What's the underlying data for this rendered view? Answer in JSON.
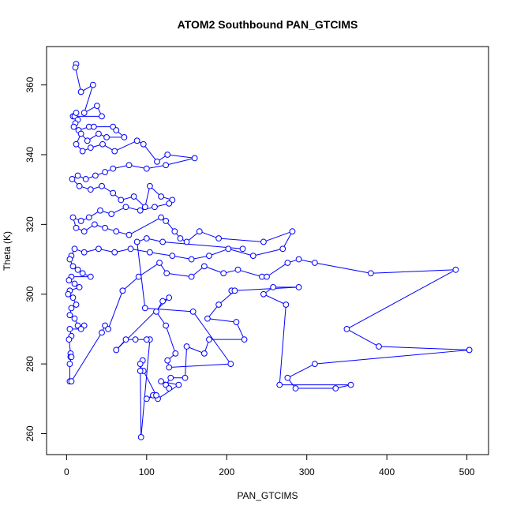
{
  "chart_data": {
    "type": "scatter",
    "style": "line+points",
    "title": "ATOM2 Southbound PAN_GTCIMS",
    "xlabel": "PAN_GTCIMS",
    "ylabel": "Theta (K)",
    "xlim": [
      -25,
      527
    ],
    "ylim": [
      254,
      371
    ],
    "xticks": [
      0,
      100,
      200,
      300,
      400,
      500
    ],
    "yticks": [
      260,
      280,
      300,
      320,
      340,
      360
    ],
    "color": "#0000ff",
    "series": [
      {
        "name": "ATOM2 Southbound",
        "points": [
          [
            12,
            366
          ],
          [
            11,
            365
          ],
          [
            18,
            358
          ],
          [
            33,
            360
          ],
          [
            22,
            352
          ],
          [
            38,
            354
          ],
          [
            44,
            351
          ],
          [
            8,
            351
          ],
          [
            10,
            351
          ],
          [
            12,
            352
          ],
          [
            14,
            350
          ],
          [
            11,
            349
          ],
          [
            9,
            348
          ],
          [
            15,
            347
          ],
          [
            28,
            348
          ],
          [
            34,
            348
          ],
          [
            58,
            348
          ],
          [
            62,
            347
          ],
          [
            72,
            345
          ],
          [
            50,
            345
          ],
          [
            40,
            346
          ],
          [
            26,
            344
          ],
          [
            18,
            346
          ],
          [
            12,
            343
          ],
          [
            20,
            341
          ],
          [
            30,
            342
          ],
          [
            45,
            343
          ],
          [
            60,
            341
          ],
          [
            88,
            344
          ],
          [
            96,
            343
          ],
          [
            113,
            338
          ],
          [
            126,
            340
          ],
          [
            160,
            339
          ],
          [
            124,
            337
          ],
          [
            100,
            336
          ],
          [
            78,
            337
          ],
          [
            58,
            336
          ],
          [
            48,
            335
          ],
          [
            36,
            334
          ],
          [
            24,
            333
          ],
          [
            14,
            334
          ],
          [
            7,
            333
          ],
          [
            16,
            331
          ],
          [
            30,
            330
          ],
          [
            44,
            331
          ],
          [
            58,
            329
          ],
          [
            68,
            327
          ],
          [
            84,
            328
          ],
          [
            98,
            325
          ],
          [
            104,
            331
          ],
          [
            118,
            328
          ],
          [
            132,
            327
          ],
          [
            128,
            326
          ],
          [
            110,
            325
          ],
          [
            92,
            324
          ],
          [
            74,
            325
          ],
          [
            56,
            323
          ],
          [
            42,
            324
          ],
          [
            28,
            322
          ],
          [
            18,
            321
          ],
          [
            8,
            322
          ],
          [
            12,
            319
          ],
          [
            22,
            318
          ],
          [
            35,
            320
          ],
          [
            48,
            319
          ],
          [
            62,
            318
          ],
          [
            78,
            317
          ],
          [
            118,
            322
          ],
          [
            124,
            321
          ],
          [
            135,
            318
          ],
          [
            142,
            316
          ],
          [
            150,
            315
          ],
          [
            166,
            318
          ],
          [
            190,
            316
          ],
          [
            246,
            315
          ],
          [
            282,
            318
          ],
          [
            270,
            313
          ],
          [
            233,
            311
          ],
          [
            202,
            313
          ],
          [
            178,
            311
          ],
          [
            156,
            310
          ],
          [
            132,
            311
          ],
          [
            104,
            312
          ],
          [
            80,
            313
          ],
          [
            60,
            312
          ],
          [
            40,
            313
          ],
          [
            22,
            312
          ],
          [
            10,
            313
          ],
          [
            6,
            311
          ],
          [
            4,
            310
          ],
          [
            8,
            308
          ],
          [
            14,
            307
          ],
          [
            20,
            306
          ],
          [
            30,
            305
          ],
          [
            6,
            305
          ],
          [
            3,
            304
          ],
          [
            10,
            303
          ],
          [
            16,
            302
          ],
          [
            4,
            301
          ],
          [
            2,
            300
          ],
          [
            8,
            299
          ],
          [
            12,
            297
          ],
          [
            6,
            296
          ],
          [
            4,
            294
          ],
          [
            10,
            293
          ],
          [
            14,
            291
          ],
          [
            22,
            291
          ],
          [
            18,
            290
          ],
          [
            4,
            290
          ],
          [
            6,
            288
          ],
          [
            3,
            287
          ],
          [
            5,
            283
          ],
          [
            5,
            282
          ],
          [
            6,
            282
          ],
          [
            4,
            280
          ],
          [
            4,
            275
          ],
          [
            6,
            275
          ],
          [
            44,
            289
          ],
          [
            48,
            291
          ],
          [
            52,
            290
          ],
          [
            70,
            301
          ],
          [
            90,
            305
          ],
          [
            116,
            309
          ],
          [
            125,
            306
          ],
          [
            156,
            305
          ],
          [
            172,
            308
          ],
          [
            196,
            306
          ],
          [
            214,
            307
          ],
          [
            244,
            305
          ],
          [
            250,
            305
          ],
          [
            276,
            309
          ],
          [
            290,
            310
          ],
          [
            310,
            309
          ],
          [
            380,
            306
          ],
          [
            486,
            307
          ],
          [
            350,
            290
          ],
          [
            390,
            285
          ],
          [
            503,
            284
          ],
          [
            310,
            280
          ],
          [
            276,
            276
          ],
          [
            286,
            273
          ],
          [
            336,
            273
          ],
          [
            355,
            274
          ],
          [
            266,
            274
          ],
          [
            274,
            297
          ],
          [
            246,
            300
          ],
          [
            258,
            302
          ],
          [
            290,
            302
          ],
          [
            206,
            301
          ],
          [
            210,
            301
          ],
          [
            190,
            297
          ],
          [
            176,
            293
          ],
          [
            212,
            292
          ],
          [
            222,
            287
          ],
          [
            178,
            287
          ],
          [
            172,
            283
          ],
          [
            150,
            285
          ],
          [
            148,
            276
          ],
          [
            130,
            276
          ],
          [
            124,
            274
          ],
          [
            128,
            273
          ],
          [
            118,
            275
          ],
          [
            140,
            274
          ],
          [
            114,
            270
          ],
          [
            108,
            271
          ],
          [
            100,
            270
          ],
          [
            112,
            271
          ],
          [
            96,
            278
          ],
          [
            92,
            278
          ],
          [
            95,
            281
          ],
          [
            92,
            280
          ],
          [
            93,
            259
          ],
          [
            104,
            287
          ],
          [
            100,
            287
          ],
          [
            86,
            287
          ],
          [
            74,
            287
          ],
          [
            62,
            284
          ],
          [
            128,
            299
          ],
          [
            120,
            298
          ],
          [
            112,
            295
          ],
          [
            124,
            291
          ],
          [
            136,
            283
          ],
          [
            126,
            281
          ],
          [
            128,
            279
          ],
          [
            205,
            280
          ],
          [
            158,
            295
          ],
          [
            98,
            296
          ],
          [
            88,
            315
          ],
          [
            100,
            316
          ],
          [
            120,
            315
          ],
          [
            220,
            313
          ]
        ]
      }
    ]
  }
}
